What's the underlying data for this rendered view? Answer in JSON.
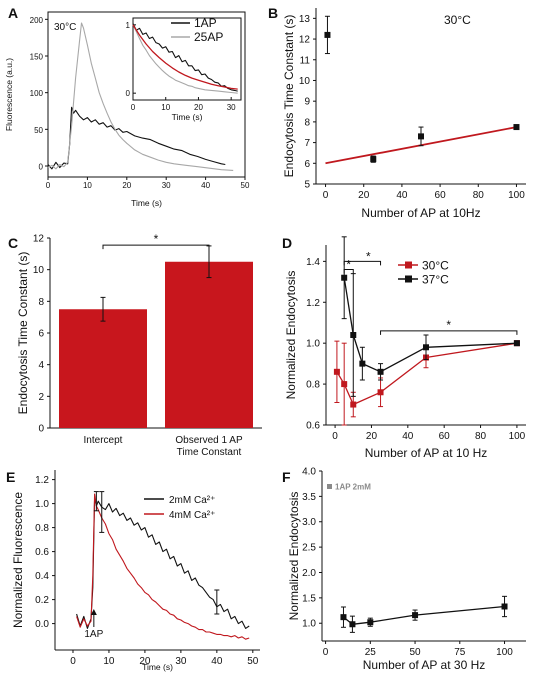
{
  "colors": {
    "black": "#111111",
    "gray": "#a8a8a8",
    "red": "#c0181e",
    "fit": "#c0181e",
    "bar": "#c8161d",
    "note": "#8a8a8a"
  },
  "chart_data": [
    {
      "panel": "A",
      "type": "line",
      "annotation": "30°C",
      "xlabel": "Time (s)",
      "ylabel": "Fluorescence (a.u.)",
      "xlim": [
        0,
        50
      ],
      "ylim": [
        -15,
        210
      ],
      "xticks": [
        "0",
        "10",
        "20",
        "30",
        "40",
        "50"
      ],
      "yticks": [
        "0",
        "50",
        "100",
        "150",
        "200"
      ],
      "series": [
        {
          "name": "1AP",
          "color": "#111111",
          "x": [
            0,
            1,
            2,
            3,
            4,
            5,
            5.5,
            6,
            6.5,
            7,
            8,
            9,
            10,
            11,
            12,
            13,
            14,
            15,
            16,
            17,
            18,
            19,
            20,
            22,
            24,
            26,
            28,
            30,
            32,
            34,
            36,
            38,
            40,
            42,
            44,
            45
          ],
          "y": [
            2,
            -4,
            5,
            -2,
            4,
            3,
            30,
            80,
            72,
            76,
            68,
            63,
            66,
            60,
            63,
            57,
            59,
            53,
            55,
            49,
            51,
            46,
            47,
            41,
            38,
            36,
            31,
            27,
            23,
            21,
            16,
            13,
            9,
            6,
            3,
            2
          ]
        },
        {
          "name": "25AP",
          "color": "#a8a8a8",
          "x": [
            0,
            1,
            2,
            3,
            4,
            5,
            6,
            7,
            8,
            8.5,
            9,
            10,
            11,
            12,
            13,
            14,
            15,
            16,
            17,
            18,
            19,
            20,
            22,
            24,
            26,
            28,
            30,
            32,
            35,
            38,
            41,
            44,
            47
          ],
          "y": [
            -2,
            1,
            -4,
            2,
            -1,
            5,
            55,
            120,
            170,
            195,
            188,
            165,
            140,
            120,
            100,
            85,
            72,
            60,
            50,
            42,
            36,
            31,
            22,
            16,
            12,
            8,
            5,
            3,
            1,
            -1,
            -3,
            -5,
            -6
          ]
        }
      ],
      "inset": {
        "xlabel": "Time (s)",
        "xlim": [
          0,
          33
        ],
        "ylim": [
          -0.1,
          1.1
        ],
        "xticks": [
          "0",
          "10",
          "20",
          "30"
        ],
        "yticks": [
          "0",
          "1"
        ],
        "series": [
          {
            "name": "1AP",
            "color": "#111111",
            "x": [
              0,
              1,
              2,
              3,
              4,
              5,
              6,
              7,
              8,
              9,
              10,
              11,
              12,
              13,
              14,
              15,
              16,
              17,
              18,
              19,
              20,
              21,
              22,
              23,
              24,
              25,
              26,
              27,
              28,
              29,
              30,
              31,
              32
            ],
            "y": [
              1.02,
              0.92,
              0.95,
              0.86,
              0.88,
              0.8,
              0.82,
              0.74,
              0.72,
              0.66,
              0.68,
              0.6,
              0.61,
              0.52,
              0.55,
              0.46,
              0.48,
              0.4,
              0.4,
              0.33,
              0.34,
              0.27,
              0.28,
              0.22,
              0.2,
              0.16,
              0.15,
              0.1,
              0.11,
              0.07,
              0.05,
              0.04,
              0.03
            ]
          },
          {
            "name": "25AP",
            "color": "#a8a8a8",
            "x": [
              0,
              1,
              2,
              3,
              4,
              5,
              6,
              7,
              8,
              9,
              10,
              11,
              12,
              13,
              14,
              15,
              16,
              17,
              18,
              19,
              20,
              22,
              24,
              26,
              28,
              30,
              32
            ],
            "y": [
              1.0,
              0.9,
              0.8,
              0.7,
              0.63,
              0.55,
              0.49,
              0.43,
              0.38,
              0.33,
              0.29,
              0.25,
              0.22,
              0.19,
              0.17,
              0.15,
              0.13,
              0.11,
              0.1,
              0.08,
              0.07,
              0.05,
              0.04,
              0.03,
              0.02,
              0.01,
              0.0
            ]
          },
          {
            "name": "fit",
            "color": "#c0181e",
            "x": [
              0,
              2,
              4,
              6,
              8,
              10,
              12,
              14,
              16,
              18,
              20,
              22,
              24,
              26,
              28,
              30,
              32
            ],
            "y": [
              1.0,
              0.85,
              0.72,
              0.61,
              0.52,
              0.44,
              0.37,
              0.31,
              0.26,
              0.22,
              0.19,
              0.16,
              0.13,
              0.11,
              0.09,
              0.07,
              0.06
            ]
          }
        ]
      }
    },
    {
      "panel": "B",
      "type": "scatter",
      "annotation": "30°C",
      "xlabel": "Number of AP at 10Hz",
      "ylabel": "Endocytosis Time Constant (s)",
      "xlim": [
        -5,
        105
      ],
      "ylim": [
        5,
        13.5
      ],
      "xticks": [
        "0",
        "20",
        "40",
        "60",
        "80",
        "100"
      ],
      "yticks": [
        "5",
        "6",
        "7",
        "8",
        "9",
        "10",
        "11",
        "12",
        "13"
      ],
      "points": {
        "x": [
          1,
          25,
          50,
          100
        ],
        "y": [
          12.2,
          6.2,
          7.3,
          7.75
        ],
        "err": [
          0.9,
          0.15,
          0.45,
          0.08
        ]
      },
      "fit": {
        "x": [
          0,
          100
        ],
        "y": [
          6.0,
          7.75
        ]
      }
    },
    {
      "panel": "C",
      "type": "bar",
      "ylabel": "Endocytosis Time Constant (s)",
      "ylim": [
        0,
        12
      ],
      "yticks": [
        "0",
        "2",
        "4",
        "6",
        "8",
        "10",
        "12"
      ],
      "categories": [
        "Intercept",
        "Observed 1 AP Time Constant"
      ],
      "category_lines": [
        [
          "Intercept"
        ],
        [
          "Observed 1 AP",
          "Time Constant"
        ]
      ],
      "values": [
        7.5,
        10.5
      ],
      "err": [
        0.75,
        1.0
      ],
      "significance": "*"
    },
    {
      "panel": "D",
      "type": "line",
      "xlabel": "Number of AP at 10 Hz",
      "ylabel": "Normalized Endocytosis",
      "xlim": [
        -5,
        105
      ],
      "ylim": [
        0.6,
        1.48
      ],
      "xticks": [
        "0",
        "20",
        "40",
        "60",
        "80",
        "100"
      ],
      "yticks": [
        "0.6",
        "0.8",
        "1.0",
        "1.2",
        "1.4"
      ],
      "series": [
        {
          "name": "30°C",
          "color": "#c0181e",
          "x": [
            1,
            5,
            10,
            25,
            50,
            100
          ],
          "y": [
            0.86,
            0.8,
            0.7,
            0.76,
            0.93,
            1.0
          ],
          "err": [
            0.15,
            0.2,
            0.06,
            0.07,
            0.05,
            0.01
          ]
        },
        {
          "name": "37°C",
          "color": "#111111",
          "x": [
            5,
            10,
            15,
            25,
            50,
            100
          ],
          "y": [
            1.32,
            1.04,
            0.9,
            0.86,
            0.98,
            1.0
          ],
          "err": [
            0.2,
            0.3,
            0.08,
            0.04,
            0.06,
            0.01
          ]
        }
      ],
      "significance": [
        "*",
        "*",
        "*"
      ]
    },
    {
      "panel": "E",
      "type": "line",
      "xlabel": "Time (s)",
      "ylabel": "Normalized Fluorescence",
      "xlim": [
        -5,
        52
      ],
      "ylim": [
        -0.22,
        1.28
      ],
      "xticks": [
        "0",
        "10",
        "20",
        "30",
        "40",
        "50"
      ],
      "yticks": [
        "0.0",
        "0.2",
        "0.4",
        "0.6",
        "0.8",
        "1.0",
        "1.2"
      ],
      "annotation": "1AP",
      "series": [
        {
          "name": "2mM Ca²⁺",
          "color": "#111111",
          "x": [
            1,
            2,
            3,
            4,
            5,
            5.5,
            6,
            6.5,
            7,
            8,
            9,
            10,
            11,
            12,
            13,
            14,
            15,
            16,
            17,
            18,
            19,
            20,
            21,
            22,
            23,
            24,
            25,
            26,
            27,
            28,
            29,
            30,
            31,
            32,
            33,
            34,
            35,
            36,
            37,
            38,
            39,
            40,
            41,
            42,
            43,
            44,
            45,
            46,
            47,
            48,
            49
          ],
          "y": [
            0.08,
            -0.02,
            0.06,
            -0.04,
            0.04,
            0.3,
            1.05,
            0.98,
            1.02,
            0.97,
            0.95,
            1.0,
            0.93,
            0.96,
            0.9,
            0.92,
            0.86,
            0.88,
            0.82,
            0.84,
            0.78,
            0.8,
            0.72,
            0.74,
            0.66,
            0.68,
            0.6,
            0.62,
            0.54,
            0.56,
            0.48,
            0.5,
            0.42,
            0.44,
            0.36,
            0.38,
            0.32,
            0.3,
            0.26,
            0.22,
            0.2,
            0.14,
            0.16,
            0.1,
            0.12,
            0.04,
            0.06,
            0.0,
            0.02,
            -0.04,
            -0.02
          ]
        },
        {
          "name": "4mM Ca²⁺",
          "color": "#c0181e",
          "x": [
            1,
            2,
            3,
            4,
            5,
            5.5,
            6,
            6.5,
            7,
            8,
            9,
            10,
            11,
            12,
            13,
            14,
            15,
            16,
            17,
            18,
            19,
            20,
            21,
            22,
            23,
            24,
            25,
            26,
            27,
            28,
            29,
            30,
            31,
            32,
            33,
            34,
            35,
            36,
            37,
            38,
            39,
            40,
            41,
            42,
            43,
            44,
            45,
            46,
            47,
            48,
            49
          ],
          "y": [
            0.06,
            -0.03,
            0.04,
            -0.02,
            0.02,
            0.4,
            1.08,
            0.98,
            0.95,
            0.88,
            0.83,
            0.75,
            0.7,
            0.62,
            0.57,
            0.52,
            0.46,
            0.42,
            0.38,
            0.33,
            0.3,
            0.26,
            0.24,
            0.2,
            0.18,
            0.15,
            0.12,
            0.11,
            0.08,
            0.07,
            0.04,
            0.03,
            0.01,
            0.0,
            -0.02,
            -0.03,
            -0.05,
            -0.05,
            -0.07,
            -0.07,
            -0.08,
            -0.09,
            -0.09,
            -0.1,
            -0.1,
            -0.11,
            -0.1,
            -0.12,
            -0.11,
            -0.13,
            -0.12
          ]
        }
      ],
      "errorbars": {
        "x": [
          6.5,
          8,
          40
        ],
        "y": [
          1.02,
          0.93,
          0.18
        ],
        "err": [
          0.08,
          0.17,
          0.1
        ]
      }
    },
    {
      "panel": "F",
      "type": "line",
      "xlabel": "Number of AP at 30 Hz",
      "ylabel": "Normalized Endocytosis",
      "xlim": [
        -2,
        112
      ],
      "ylim": [
        0.65,
        4.0
      ],
      "xticks": [
        "0",
        "25",
        "50",
        "75",
        "100"
      ],
      "yticks": [
        "1.0",
        "1.5",
        "2.0",
        "2.5",
        "3.0",
        "3.5",
        "4.0"
      ],
      "legend_note": "1AP 2mM",
      "series": [
        {
          "name": "",
          "color": "#111111",
          "x": [
            10,
            15,
            25,
            50,
            100
          ],
          "y": [
            1.12,
            0.98,
            1.02,
            1.16,
            1.33
          ],
          "err": [
            0.2,
            0.16,
            0.08,
            0.1,
            0.2
          ]
        }
      ]
    }
  ]
}
